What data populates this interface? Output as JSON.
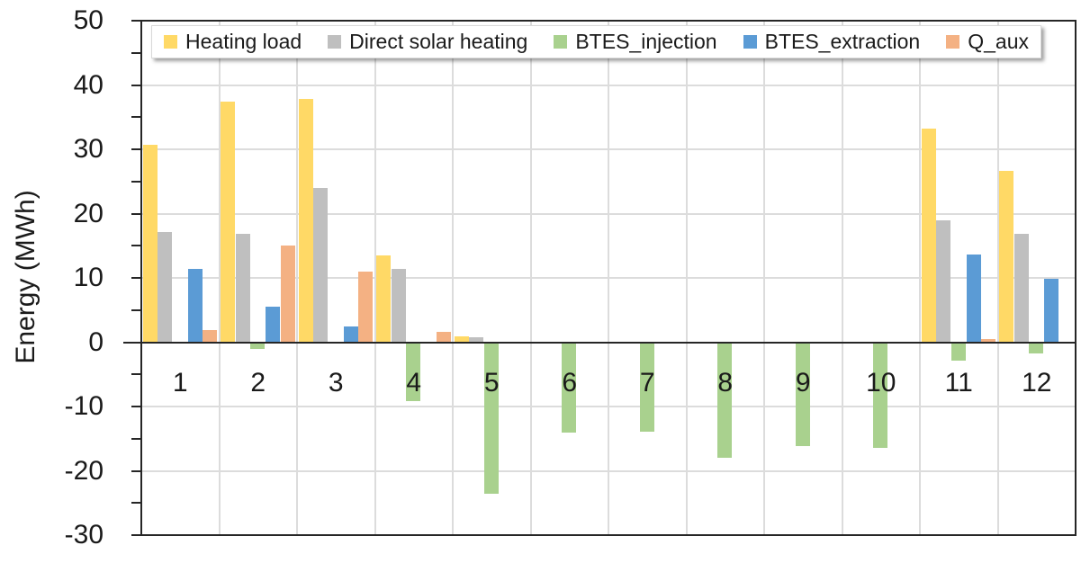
{
  "colors": {
    "background": "#FFFFFF",
    "axis": "#262626",
    "gridline": "#DCDCDC",
    "text": "#1A1A1A",
    "legend_border": "#D9D9D9"
  },
  "chart_data": {
    "type": "bar",
    "title": "",
    "xlabel": "",
    "ylabel": "Energy (MWh)",
    "categories": [
      "1",
      "2",
      "3",
      "4",
      "5",
      "6",
      "7",
      "8",
      "9",
      "10",
      "11",
      "12"
    ],
    "series": [
      {
        "name": "Heating load",
        "color": "#FFD966",
        "values": [
          30.7,
          37.4,
          37.8,
          13.5,
          0.9,
          0,
          0,
          0,
          0,
          0,
          33.2,
          26.7
        ]
      },
      {
        "name": "Direct solar heating",
        "color": "#BFBFBF",
        "values": [
          17.2,
          16.8,
          24.0,
          11.4,
          0.8,
          0,
          0,
          0,
          0,
          0,
          18.9,
          16.8
        ]
      },
      {
        "name": "BTES_injection",
        "color": "#A9D18E",
        "values": [
          0,
          -1.1,
          0,
          -9.1,
          -23.5,
          -14.0,
          -13.9,
          -18.0,
          -16.1,
          -16.5,
          -2.8,
          -1.8
        ]
      },
      {
        "name": "BTES_extraction",
        "color": "#5B9BD5",
        "values": [
          11.4,
          5.5,
          2.4,
          0,
          0,
          0,
          0,
          0,
          0,
          0,
          13.7,
          9.9
        ]
      },
      {
        "name": "Q_aux",
        "color": "#F4B183",
        "values": [
          1.9,
          15.0,
          11.0,
          1.6,
          0,
          0,
          0,
          0,
          0,
          0,
          0.5,
          0
        ]
      }
    ],
    "ylim": [
      -30,
      50
    ],
    "ytick_step": 10,
    "yminor_tick_step": 5,
    "ytick_labels": [
      "50",
      "40",
      "30",
      "20",
      "10",
      "0",
      "-10",
      "-20",
      "-30"
    ],
    "grid": true,
    "legend_position": "top-inside"
  }
}
